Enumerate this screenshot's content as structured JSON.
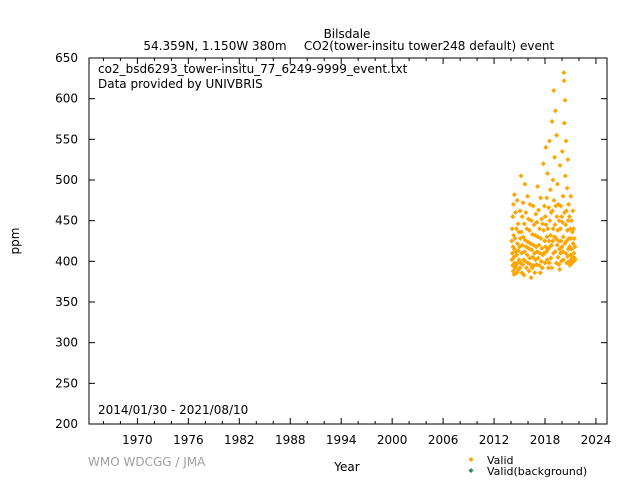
{
  "header": {
    "station": "Bilsdale",
    "location": "54.359N, 1.150W 380m",
    "species": "CO2(tower-insitu tower248 default) event"
  },
  "annotations": {
    "filename": "co2_bsd6293_tower-insitu_77_6249-9999_event.txt",
    "provider": "Data provided by UNIVBRIS",
    "period": "2014/01/30 - 2021/08/10",
    "credit": "WMO WDCGG / JMA"
  },
  "colors": {
    "valid": "#ffa500",
    "valid_background": "#2e8b57",
    "axis": "#000000"
  },
  "chart_data": {
    "type": "scatter",
    "xlabel": "Year",
    "ylabel": "ppm",
    "xlim": [
      1964.3,
      2025.3
    ],
    "ylim": [
      200,
      650
    ],
    "xticks": [
      1970,
      1976,
      1982,
      1988,
      1994,
      2000,
      2006,
      2012,
      2018,
      2024
    ],
    "yticks": [
      200,
      250,
      300,
      350,
      400,
      450,
      500,
      550,
      600,
      650
    ],
    "legend_position": "bottom-right",
    "grid": false,
    "series": [
      {
        "name": "Valid",
        "color": "#ffa500",
        "points": [
          [
            2014.08,
            425
          ],
          [
            2014.1,
            402
          ],
          [
            2014.12,
            440
          ],
          [
            2014.15,
            410
          ],
          [
            2014.18,
            395
          ],
          [
            2014.2,
            455
          ],
          [
            2014.22,
            418
          ],
          [
            2014.25,
            388
          ],
          [
            2014.28,
            470
          ],
          [
            2014.3,
            432
          ],
          [
            2014.33,
            405
          ],
          [
            2014.36,
            384
          ],
          [
            2014.38,
            482
          ],
          [
            2014.4,
            415
          ],
          [
            2014.43,
            398
          ],
          [
            2014.46,
            428
          ],
          [
            2014.48,
            392
          ],
          [
            2014.52,
            460
          ],
          [
            2014.55,
            412
          ],
          [
            2014.58,
            395
          ],
          [
            2014.62,
            440
          ],
          [
            2014.65,
            408
          ],
          [
            2014.68,
            386
          ],
          [
            2014.72,
            475
          ],
          [
            2014.75,
            422
          ],
          [
            2014.78,
            398
          ],
          [
            2014.82,
            446
          ],
          [
            2014.85,
            413
          ],
          [
            2014.88,
            390
          ],
          [
            2014.92,
            436
          ],
          [
            2014.95,
            402
          ],
          [
            2015.0,
            418
          ],
          [
            2015.03,
            392
          ],
          [
            2015.06,
            462
          ],
          [
            2015.1,
            428
          ],
          [
            2015.13,
            398
          ],
          [
            2015.17,
            505
          ],
          [
            2015.2,
            436
          ],
          [
            2015.24,
            410
          ],
          [
            2015.27,
            386
          ],
          [
            2015.31,
            455
          ],
          [
            2015.34,
            420
          ],
          [
            2015.38,
            396
          ],
          [
            2015.42,
            472
          ],
          [
            2015.45,
            430
          ],
          [
            2015.48,
            402
          ],
          [
            2015.52,
            383
          ],
          [
            2015.56,
            446
          ],
          [
            2015.6,
            412
          ],
          [
            2015.63,
            495
          ],
          [
            2015.66,
            426
          ],
          [
            2015.7,
            400
          ],
          [
            2015.74,
            460
          ],
          [
            2015.78,
            418
          ],
          [
            2015.82,
            392
          ],
          [
            2015.86,
            440
          ],
          [
            2015.9,
            408
          ],
          [
            2015.94,
            480
          ],
          [
            2015.98,
            424
          ],
          [
            2016.01,
            398
          ],
          [
            2016.05,
            452
          ],
          [
            2016.09,
            416
          ],
          [
            2016.12,
            388
          ],
          [
            2016.16,
            438
          ],
          [
            2016.2,
            404
          ],
          [
            2016.24,
            470
          ],
          [
            2016.28,
            422
          ],
          [
            2016.32,
            396
          ],
          [
            2016.36,
            380
          ],
          [
            2016.4,
            450
          ],
          [
            2016.44,
            414
          ],
          [
            2016.48,
            392
          ],
          [
            2016.52,
            433
          ],
          [
            2016.56,
            405
          ],
          [
            2016.6,
            468
          ],
          [
            2016.64,
            420
          ],
          [
            2016.68,
            395
          ],
          [
            2016.72,
            445
          ],
          [
            2016.76,
            410
          ],
          [
            2016.8,
            386
          ],
          [
            2016.84,
            432
          ],
          [
            2016.88,
            402
          ],
          [
            2016.92,
            458
          ],
          [
            2016.96,
            418
          ],
          [
            2017.0,
            396
          ],
          [
            2017.04,
            448
          ],
          [
            2017.08,
            412
          ],
          [
            2017.12,
            492
          ],
          [
            2017.16,
            430
          ],
          [
            2017.2,
            404
          ],
          [
            2017.24,
            463
          ],
          [
            2017.28,
            420
          ],
          [
            2017.32,
            395
          ],
          [
            2017.36,
            440
          ],
          [
            2017.4,
            410
          ],
          [
            2017.44,
            386
          ],
          [
            2017.48,
            478
          ],
          [
            2017.52,
            428
          ],
          [
            2017.56,
            400
          ],
          [
            2017.6,
            452
          ],
          [
            2017.64,
            416
          ],
          [
            2017.68,
            392
          ],
          [
            2017.72,
            446
          ],
          [
            2017.76,
            408
          ],
          [
            2017.8,
            520
          ],
          [
            2017.84,
            438
          ],
          [
            2017.88,
            410
          ],
          [
            2017.92,
            468
          ],
          [
            2017.96,
            425
          ],
          [
            2018.0,
            398
          ],
          [
            2018.03,
            455
          ],
          [
            2018.06,
            418
          ],
          [
            2018.1,
            540
          ],
          [
            2018.13,
            445
          ],
          [
            2018.16,
            412
          ],
          [
            2018.2,
            478
          ],
          [
            2018.23,
            430
          ],
          [
            2018.26,
            402
          ],
          [
            2018.3,
            508
          ],
          [
            2018.33,
            440
          ],
          [
            2018.36,
            415
          ],
          [
            2018.4,
            392
          ],
          [
            2018.43,
            466
          ],
          [
            2018.46,
            425
          ],
          [
            2018.5,
            398
          ],
          [
            2018.53,
            548
          ],
          [
            2018.56,
            450
          ],
          [
            2018.6,
            418
          ],
          [
            2018.63,
            488
          ],
          [
            2018.66,
            432
          ],
          [
            2018.7,
            404
          ],
          [
            2018.73,
            460
          ],
          [
            2018.76,
            420
          ],
          [
            2018.8,
            392
          ],
          [
            2018.83,
            572
          ],
          [
            2018.86,
            462
          ],
          [
            2018.9,
            425
          ],
          [
            2018.93,
            500
          ],
          [
            2018.96,
            440
          ],
          [
            2019.0,
            410
          ],
          [
            2019.03,
            610
          ],
          [
            2019.06,
            475
          ],
          [
            2019.1,
            430
          ],
          [
            2019.13,
            528
          ],
          [
            2019.16,
            445
          ],
          [
            2019.2,
            412
          ],
          [
            2019.23,
            585
          ],
          [
            2019.26,
            468
          ],
          [
            2019.3,
            428
          ],
          [
            2019.33,
            398
          ],
          [
            2019.36,
            555
          ],
          [
            2019.4,
            455
          ],
          [
            2019.43,
            420
          ],
          [
            2019.46,
            495
          ],
          [
            2019.5,
            438
          ],
          [
            2019.53,
            405
          ],
          [
            2019.56,
            470
          ],
          [
            2019.6,
            425
          ],
          [
            2019.63,
            396
          ],
          [
            2019.66,
            450
          ],
          [
            2019.7,
            415
          ],
          [
            2019.73,
            390
          ],
          [
            2019.76,
            518
          ],
          [
            2019.8,
            440
          ],
          [
            2019.83,
            410
          ],
          [
            2019.86,
            468
          ],
          [
            2019.9,
            425
          ],
          [
            2019.93,
            400
          ],
          [
            2019.96,
            455
          ],
          [
            2020.0,
            418
          ],
          [
            2020.03,
            535
          ],
          [
            2020.06,
            448
          ],
          [
            2020.09,
            412
          ],
          [
            2020.12,
            480
          ],
          [
            2020.15,
            430
          ],
          [
            2020.18,
            402
          ],
          [
            2020.21,
            632
          ],
          [
            2020.24,
            622
          ],
          [
            2020.27,
            570
          ],
          [
            2020.3,
            460
          ],
          [
            2020.33,
            422
          ],
          [
            2020.36,
            598
          ],
          [
            2020.39,
            505
          ],
          [
            2020.42,
            445
          ],
          [
            2020.45,
            410
          ],
          [
            2020.48,
            548
          ],
          [
            2020.51,
            462
          ],
          [
            2020.54,
            425
          ],
          [
            2020.57,
            398
          ],
          [
            2020.6,
            490
          ],
          [
            2020.63,
            438
          ],
          [
            2020.66,
            406
          ],
          [
            2020.69,
            525
          ],
          [
            2020.72,
            450
          ],
          [
            2020.75,
            415
          ],
          [
            2020.78,
            470
          ],
          [
            2020.81,
            428
          ],
          [
            2020.84,
            400
          ],
          [
            2020.87,
            455
          ],
          [
            2020.9,
            418
          ],
          [
            2020.93,
            395
          ],
          [
            2020.96,
            440
          ],
          [
            2021.0,
            408
          ],
          [
            2021.03,
            480
          ],
          [
            2021.06,
            428
          ],
          [
            2021.09,
            402
          ],
          [
            2021.12,
            450
          ],
          [
            2021.15,
            415
          ],
          [
            2021.18,
            398
          ],
          [
            2021.21,
            436
          ],
          [
            2021.24,
            405
          ],
          [
            2021.28,
            462
          ],
          [
            2021.31,
            422
          ],
          [
            2021.34,
            400
          ],
          [
            2021.37,
            440
          ],
          [
            2021.4,
            410
          ],
          [
            2021.44,
            428
          ],
          [
            2021.48,
            404
          ],
          [
            2021.52,
            418
          ],
          [
            2021.56,
            402
          ]
        ]
      },
      {
        "name": "Valid(background)",
        "color": "#2e8b57",
        "points": []
      }
    ]
  }
}
